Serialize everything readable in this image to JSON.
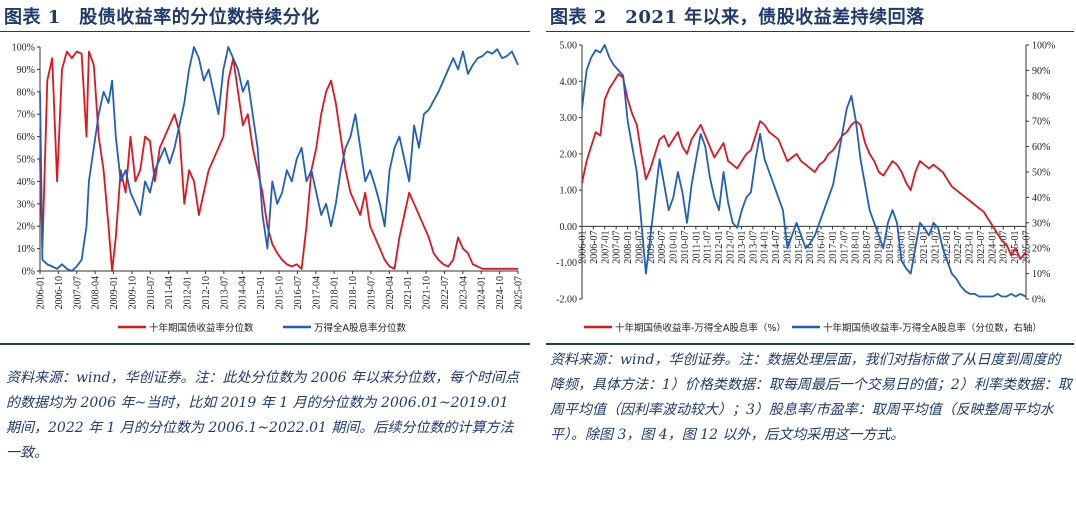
{
  "figure1": {
    "title": "图表 1　股债收益率的分位数持续分化",
    "source_note": "资料来源：wind，华创证券。注：此处分位数为 2006 年以来分位数，每个时间点的数据均为 2006 年~当时，比如 2019 年 1 月的分位数为 2006.01~2019.01 期间，2022 年 1 月的分位数为 2006.1~2022.01 期间。后续分位数的计算方法一致。",
    "colors": {
      "bond": "#e0151e",
      "equity": "#1f5fbf"
    },
    "chart_data": {
      "type": "line",
      "ylim": [
        0,
        100
      ],
      "y_ticks": [
        "0%",
        "10%",
        "20%",
        "30%",
        "40%",
        "50%",
        "60%",
        "70%",
        "80%",
        "90%",
        "100%"
      ],
      "x_tick_labels": [
        "2006-01",
        "2006-10",
        "2007-07",
        "2008-04",
        "2009-01",
        "2009-10",
        "2010-07",
        "2011-04",
        "2012-01",
        "2012-10",
        "2013-07",
        "2014-04",
        "2015-01",
        "2015-10",
        "2016-07",
        "2017-04",
        "2018-01",
        "2018-10",
        "2019-07",
        "2020-04",
        "2021-01",
        "2021-10",
        "2022-07",
        "2023-04",
        "2024-01",
        "2024-10",
        "2025-07"
      ],
      "series": [
        {
          "name": "十年期国债收益率分位数",
          "color": "#e0151e",
          "x": [
            2006.0,
            2006.1,
            2006.3,
            2006.5,
            2006.7,
            2006.9,
            2007.1,
            2007.3,
            2007.5,
            2007.7,
            2007.9,
            2008.0,
            2008.2,
            2008.4,
            2008.6,
            2008.8,
            2008.95,
            2009.1,
            2009.3,
            2009.5,
            2009.7,
            2009.9,
            2010.1,
            2010.3,
            2010.5,
            2010.7,
            2010.9,
            2011.1,
            2011.3,
            2011.5,
            2011.7,
            2011.9,
            2012.1,
            2012.3,
            2012.5,
            2012.7,
            2012.9,
            2013.1,
            2013.3,
            2013.5,
            2013.7,
            2013.9,
            2014.1,
            2014.3,
            2014.5,
            2014.7,
            2014.9,
            2015.1,
            2015.3,
            2015.5,
            2015.7,
            2015.9,
            2016.1,
            2016.3,
            2016.5,
            2016.7,
            2016.9,
            2017.1,
            2017.3,
            2017.5,
            2017.7,
            2017.9,
            2018.1,
            2018.3,
            2018.5,
            2018.7,
            2018.9,
            2019.1,
            2019.3,
            2019.5,
            2019.7,
            2019.9,
            2020.1,
            2020.3,
            2020.5,
            2020.7,
            2020.9,
            2021.1,
            2021.3,
            2021.5,
            2021.7,
            2021.9,
            2022.1,
            2022.3,
            2022.5,
            2022.7,
            2022.9,
            2023.1,
            2023.3,
            2023.5,
            2023.7,
            2023.9,
            2024.1,
            2024.3,
            2024.5,
            2024.7,
            2024.9,
            2025.1,
            2025.3,
            2025.55
          ],
          "y": [
            50,
            10,
            85,
            95,
            40,
            90,
            98,
            95,
            98,
            97,
            60,
            98,
            92,
            60,
            45,
            20,
            0,
            15,
            45,
            35,
            60,
            40,
            45,
            60,
            58,
            40,
            55,
            60,
            65,
            70,
            62,
            30,
            45,
            40,
            25,
            35,
            45,
            50,
            55,
            60,
            85,
            95,
            80,
            65,
            70,
            55,
            45,
            35,
            20,
            12,
            8,
            5,
            3,
            2,
            3,
            1,
            20,
            45,
            55,
            70,
            80,
            85,
            75,
            60,
            45,
            35,
            30,
            25,
            35,
            20,
            15,
            10,
            5,
            2,
            1,
            15,
            25,
            35,
            30,
            25,
            20,
            15,
            8,
            5,
            3,
            2,
            5,
            15,
            10,
            8,
            3,
            2,
            1,
            1,
            1,
            1,
            1,
            1,
            1,
            1
          ]
        },
        {
          "name": "万得全A股息率分位数",
          "color": "#1f5fbf",
          "x": [
            2006.0,
            2006.1,
            2006.3,
            2006.5,
            2006.7,
            2006.9,
            2007.1,
            2007.3,
            2007.5,
            2007.7,
            2007.9,
            2008.0,
            2008.2,
            2008.4,
            2008.6,
            2008.8,
            2008.95,
            2009.1,
            2009.3,
            2009.5,
            2009.7,
            2009.9,
            2010.1,
            2010.3,
            2010.5,
            2010.7,
            2010.9,
            2011.1,
            2011.3,
            2011.5,
            2011.7,
            2011.9,
            2012.1,
            2012.3,
            2012.5,
            2012.7,
            2012.9,
            2013.1,
            2013.3,
            2013.5,
            2013.7,
            2013.9,
            2014.1,
            2014.3,
            2014.5,
            2014.7,
            2014.9,
            2015.1,
            2015.3,
            2015.5,
            2015.7,
            2015.9,
            2016.1,
            2016.3,
            2016.5,
            2016.7,
            2016.9,
            2017.1,
            2017.3,
            2017.5,
            2017.7,
            2017.9,
            2018.1,
            2018.3,
            2018.5,
            2018.7,
            2018.9,
            2019.1,
            2019.3,
            2019.5,
            2019.7,
            2019.9,
            2020.1,
            2020.3,
            2020.5,
            2020.7,
            2020.9,
            2021.1,
            2021.3,
            2021.5,
            2021.7,
            2021.9,
            2022.1,
            2022.3,
            2022.5,
            2022.7,
            2022.9,
            2023.1,
            2023.3,
            2023.5,
            2023.7,
            2023.9,
            2024.1,
            2024.3,
            2024.5,
            2024.7,
            2024.9,
            2025.1,
            2025.3,
            2025.55
          ],
          "y": [
            80,
            5,
            3,
            2,
            1,
            3,
            1,
            0,
            2,
            5,
            20,
            40,
            55,
            70,
            80,
            75,
            85,
            60,
            40,
            45,
            35,
            30,
            25,
            40,
            35,
            45,
            50,
            55,
            48,
            55,
            65,
            75,
            90,
            100,
            95,
            85,
            90,
            80,
            70,
            90,
            100,
            95,
            90,
            80,
            85,
            70,
            55,
            25,
            10,
            40,
            30,
            35,
            45,
            40,
            50,
            55,
            40,
            45,
            35,
            25,
            30,
            20,
            30,
            45,
            55,
            60,
            70,
            55,
            40,
            45,
            38,
            30,
            20,
            45,
            55,
            60,
            50,
            40,
            65,
            55,
            70,
            72,
            76,
            80,
            85,
            90,
            95,
            90,
            98,
            88,
            92,
            95,
            96,
            98,
            97,
            99,
            95,
            96,
            98,
            92
          ]
        }
      ]
    },
    "legend": [
      {
        "label": "十年期国债收益率分位数",
        "color": "#e0151e"
      },
      {
        "label": "万得全A股息率分位数",
        "color": "#1f5fbf"
      }
    ]
  },
  "figure2": {
    "title": "图表 2　2021 年以来，债股收益差持续回落",
    "source_note": "资料来源：wind，华创证券。注：数据处理层面，我们对指标做了从日度到周度的降频，具体方法：1）价格类数据：取每周最后一个交易日的值；2）利率类数据：取周平均值（因利率波动较大）；3）股息率/市盈率：取周平均值（反映整周平均水平）。除图 3，图 4，图 12 以外，后文均采用这一方式。",
    "colors": {
      "spread": "#e0151e",
      "spread_pct": "#1f5fbf"
    },
    "chart_data": {
      "type": "line",
      "ylim_left": [
        -2.0,
        5.0
      ],
      "ylim_right": [
        0,
        100
      ],
      "y_ticks_left": [
        "5.00",
        "4.00",
        "3.00",
        "2.00",
        "1.00",
        "0.00",
        "-1.00",
        "-2.00"
      ],
      "y_ticks_right": [
        "100%",
        "90%",
        "80%",
        "70%",
        "60%",
        "50%",
        "40%",
        "30%",
        "20%",
        "10%",
        "0%"
      ],
      "x_tick_labels": [
        "2006-01",
        "2006-07",
        "2007-01",
        "2007-07",
        "2008-01",
        "2008-07",
        "2009-01",
        "2009-07",
        "2010-01",
        "2010-07",
        "2011-01",
        "2011-07",
        "2012-01",
        "2012-07",
        "2013-01",
        "2013-07",
        "2014-01",
        "2014-07",
        "2015-01",
        "2015-07",
        "2016-01",
        "2016-07",
        "2017-01",
        "2017-07",
        "2018-01",
        "2018-07",
        "2019-01",
        "2019-07",
        "2020-01",
        "2020-07",
        "2021-01",
        "2021-07",
        "2022-01",
        "2022-07",
        "2023-01",
        "2023-07",
        "2024-01",
        "2024-07",
        "2025-01",
        "2025-07"
      ],
      "series": [
        {
          "name": "十年期国债收益率-万得全A股息率（%）",
          "color": "#e0151e",
          "axis": "left",
          "x": [
            2006.0,
            2006.2,
            2006.4,
            2006.6,
            2006.8,
            2007.0,
            2007.2,
            2007.4,
            2007.6,
            2007.8,
            2008.0,
            2008.2,
            2008.4,
            2008.6,
            2008.8,
            2009.0,
            2009.2,
            2009.4,
            2009.6,
            2009.8,
            2010.0,
            2010.2,
            2010.4,
            2010.6,
            2010.8,
            2011.0,
            2011.2,
            2011.4,
            2011.6,
            2011.8,
            2012.0,
            2012.2,
            2012.4,
            2012.6,
            2012.8,
            2013.0,
            2013.2,
            2013.4,
            2013.6,
            2013.8,
            2014.0,
            2014.2,
            2014.4,
            2014.6,
            2014.8,
            2015.0,
            2015.2,
            2015.4,
            2015.6,
            2015.8,
            2016.0,
            2016.2,
            2016.4,
            2016.6,
            2016.8,
            2017.0,
            2017.2,
            2017.4,
            2017.6,
            2017.8,
            2018.0,
            2018.2,
            2018.4,
            2018.6,
            2018.8,
            2019.0,
            2019.2,
            2019.4,
            2019.6,
            2019.8,
            2020.0,
            2020.2,
            2020.4,
            2020.6,
            2020.8,
            2021.0,
            2021.2,
            2021.4,
            2021.6,
            2021.8,
            2022.0,
            2022.2,
            2022.4,
            2022.6,
            2022.8,
            2023.0,
            2023.2,
            2023.4,
            2023.6,
            2023.8,
            2024.0,
            2024.2,
            2024.4,
            2024.6,
            2024.8,
            2025.0,
            2025.2,
            2025.45
          ],
          "y": [
            1.2,
            1.8,
            2.2,
            2.6,
            2.5,
            3.5,
            3.8,
            4.0,
            4.2,
            4.1,
            3.5,
            3.1,
            2.8,
            2.0,
            1.3,
            1.6,
            2.0,
            2.4,
            2.5,
            2.2,
            2.4,
            2.6,
            2.2,
            2.0,
            2.4,
            2.6,
            2.8,
            2.5,
            2.2,
            1.9,
            2.1,
            2.3,
            1.8,
            1.7,
            1.6,
            1.8,
            2.0,
            2.1,
            2.5,
            2.9,
            2.8,
            2.6,
            2.5,
            2.4,
            2.1,
            1.8,
            1.9,
            2.0,
            1.8,
            1.7,
            1.6,
            1.5,
            1.7,
            1.8,
            2.0,
            2.1,
            2.3,
            2.5,
            2.6,
            2.8,
            2.9,
            2.8,
            2.3,
            2.0,
            1.8,
            1.5,
            1.4,
            1.6,
            1.8,
            1.7,
            1.5,
            1.2,
            1.0,
            1.5,
            1.8,
            1.7,
            1.6,
            1.7,
            1.6,
            1.5,
            1.3,
            1.1,
            1.0,
            0.9,
            0.8,
            0.7,
            0.6,
            0.5,
            0.4,
            0.2,
            0.0,
            -0.2,
            -0.4,
            -0.5,
            -0.8,
            -0.6,
            -0.9,
            -0.7
          ]
        },
        {
          "name": "十年期国债收益率-万得全A股息率（分位数，右轴）",
          "color": "#1f5fbf",
          "axis": "right",
          "x": [
            2006.0,
            2006.2,
            2006.4,
            2006.6,
            2006.8,
            2007.0,
            2007.2,
            2007.4,
            2007.6,
            2007.8,
            2008.0,
            2008.2,
            2008.4,
            2008.6,
            2008.8,
            2009.0,
            2009.2,
            2009.4,
            2009.6,
            2009.8,
            2010.0,
            2010.2,
            2010.4,
            2010.6,
            2010.8,
            2011.0,
            2011.2,
            2011.4,
            2011.6,
            2011.8,
            2012.0,
            2012.2,
            2012.4,
            2012.6,
            2012.8,
            2013.0,
            2013.2,
            2013.4,
            2013.6,
            2013.8,
            2014.0,
            2014.2,
            2014.4,
            2014.6,
            2014.8,
            2015.0,
            2015.2,
            2015.4,
            2015.6,
            2015.8,
            2016.0,
            2016.2,
            2016.4,
            2016.6,
            2016.8,
            2017.0,
            2017.2,
            2017.4,
            2017.6,
            2017.8,
            2018.0,
            2018.2,
            2018.4,
            2018.6,
            2018.8,
            2019.0,
            2019.2,
            2019.4,
            2019.6,
            2019.8,
            2020.0,
            2020.2,
            2020.4,
            2020.6,
            2020.8,
            2021.0,
            2021.2,
            2021.4,
            2021.6,
            2021.8,
            2022.0,
            2022.2,
            2022.4,
            2022.6,
            2022.8,
            2023.0,
            2023.2,
            2023.4,
            2023.6,
            2023.8,
            2024.0,
            2024.2,
            2024.4,
            2024.6,
            2024.8,
            2025.0,
            2025.2,
            2025.45
          ],
          "y": [
            75,
            90,
            95,
            98,
            97,
            100,
            95,
            92,
            90,
            88,
            70,
            60,
            50,
            30,
            10,
            25,
            40,
            55,
            45,
            35,
            40,
            50,
            42,
            30,
            45,
            55,
            65,
            60,
            48,
            40,
            35,
            50,
            38,
            30,
            28,
            35,
            40,
            42,
            55,
            65,
            55,
            50,
            45,
            40,
            35,
            20,
            25,
            30,
            25,
            20,
            22,
            25,
            30,
            35,
            40,
            45,
            55,
            65,
            75,
            80,
            70,
            55,
            45,
            35,
            30,
            25,
            20,
            30,
            35,
            30,
            15,
            12,
            10,
            20,
            30,
            28,
            25,
            30,
            28,
            20,
            15,
            10,
            8,
            5,
            3,
            2,
            2,
            1,
            1,
            1,
            1,
            2,
            1,
            1,
            2,
            1,
            2,
            1
          ]
        }
      ]
    },
    "legend": [
      {
        "label": "十年期国债收益率-万得全A股息率（%）",
        "color": "#e0151e"
      },
      {
        "label": "十年期国债收益率-万得全A股息率（分位数，右轴）",
        "color": "#1f5fbf"
      }
    ]
  }
}
